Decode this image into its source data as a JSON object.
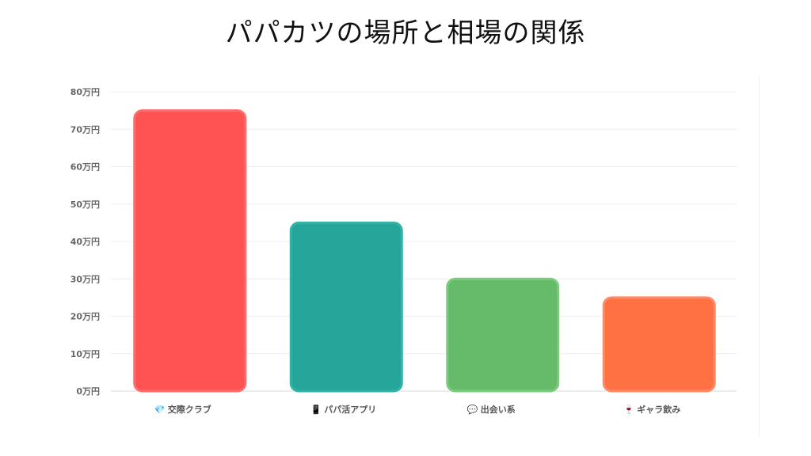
{
  "page_title": "パパカツの場所と相場の関係",
  "chart_data": {
    "type": "bar",
    "title": "パパカツの場所と相場の関係",
    "categories": [
      "交際クラブ",
      "パパ活アプリ",
      "出会い系",
      "ギャラ飲み"
    ],
    "category_icons": [
      "gem-icon",
      "phone-icon",
      "speech-bubble-icon",
      "wine-glass-icon"
    ],
    "category_icon_glyphs": [
      "💎",
      "📱",
      "💬",
      "🍷"
    ],
    "values": [
      75,
      45,
      30,
      25
    ],
    "value_unit": "万円",
    "ylim": [
      0,
      80
    ],
    "yticks": [
      0,
      10,
      20,
      30,
      40,
      50,
      60,
      70,
      80
    ],
    "ytick_labels": [
      "0万円",
      "10万円",
      "20万円",
      "30万円",
      "40万円",
      "50万円",
      "60万円",
      "70万円",
      "80万円"
    ],
    "grid": true,
    "legend": "none",
    "colors": [
      "#ff5252",
      "#26a69a",
      "#66bb6a",
      "#ff7043"
    ],
    "border_colors": [
      "#ff6b6b",
      "#33b3a6",
      "#7ccc7f",
      "#ff8a65"
    ]
  }
}
